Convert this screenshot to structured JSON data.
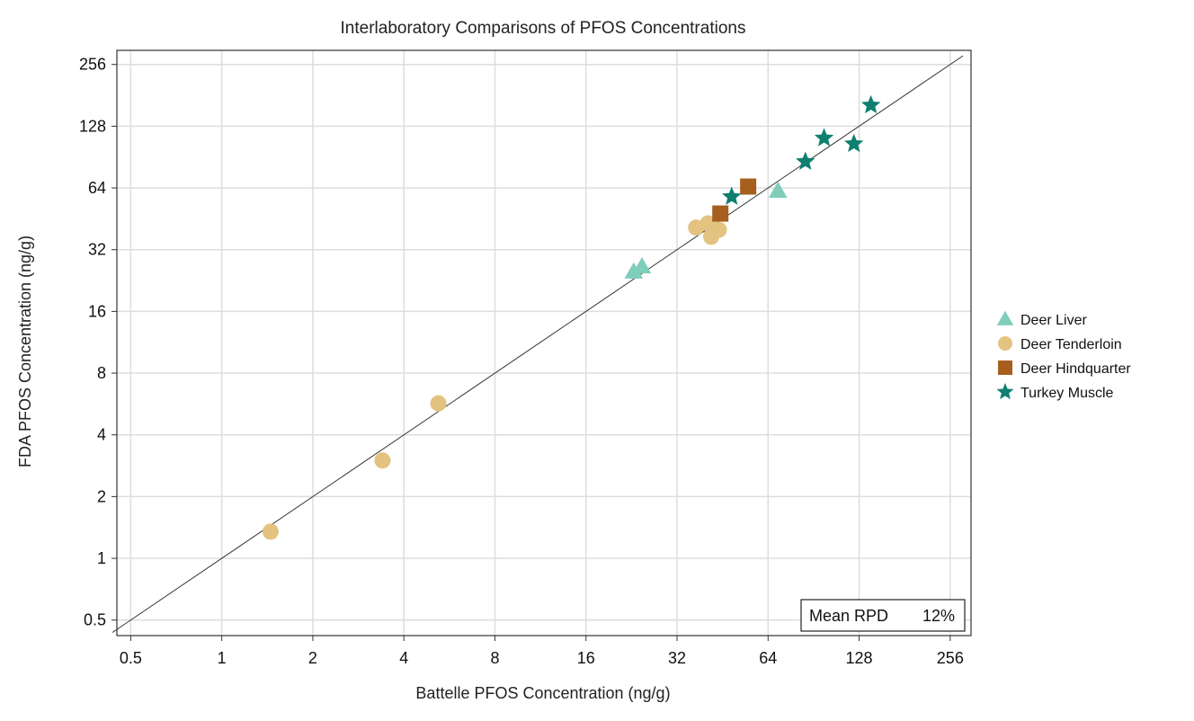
{
  "chart_data": {
    "type": "scatter",
    "title": "Interlaboratory Comparisons of PFOS Concentrations",
    "xlabel": "Battelle PFOS Concentration (ng/g)",
    "ylabel": "FDA PFOS Concentration (ng/g)",
    "x_scale": "log2",
    "y_scale": "log2",
    "xlim": [
      0.45,
      300
    ],
    "ylim": [
      0.42,
      300
    ],
    "x_ticks": [
      0.5,
      1,
      2,
      4,
      8,
      16,
      32,
      64,
      128,
      256
    ],
    "y_ticks": [
      0.5,
      1,
      2,
      4,
      8,
      16,
      32,
      64,
      128,
      256
    ],
    "x_tick_labels": [
      "0.5",
      "1",
      "2",
      "4",
      "8",
      "16",
      "32",
      "64",
      "128",
      "256"
    ],
    "y_tick_labels": [
      "0.5",
      "1",
      "2",
      "4",
      "8",
      "16",
      "32",
      "64",
      "128",
      "256"
    ],
    "grid": true,
    "reference_line": "1:1",
    "legend_position": "right",
    "annotation": {
      "label": "Mean RPD",
      "value": "12%"
    },
    "series": [
      {
        "name": "Deer Liver",
        "marker": "triangle",
        "color": "#7fcdbb",
        "points": [
          [
            23,
            25
          ],
          [
            24.5,
            26.5
          ],
          [
            69,
            62
          ]
        ]
      },
      {
        "name": "Deer Tenderloin",
        "marker": "circle",
        "color": "#e4c27f",
        "points": [
          [
            1.45,
            1.35
          ],
          [
            3.4,
            3.0
          ],
          [
            5.2,
            5.7
          ],
          [
            37,
            41
          ],
          [
            40.5,
            43
          ],
          [
            41.5,
            37
          ],
          [
            44,
            40
          ]
        ]
      },
      {
        "name": "Deer Hindquarter",
        "marker": "square",
        "color": "#a65f1e",
        "points": [
          [
            44.5,
            48
          ],
          [
            55,
            65
          ]
        ]
      },
      {
        "name": "Turkey Muscle",
        "marker": "star",
        "color": "#0f8070",
        "points": [
          [
            48.5,
            58
          ],
          [
            85,
            86
          ],
          [
            98,
            112
          ],
          [
            123,
            105
          ],
          [
            140,
            162
          ]
        ]
      }
    ]
  }
}
